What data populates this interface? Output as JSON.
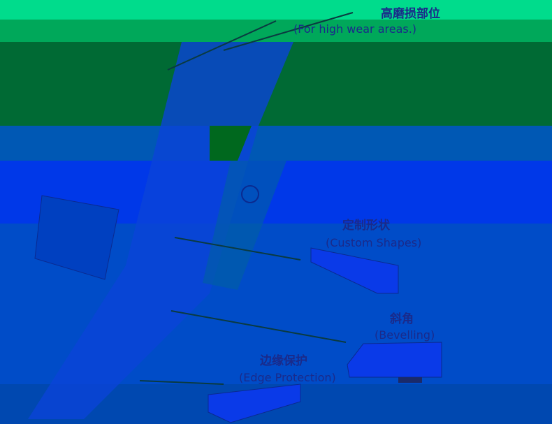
{
  "labels": [
    {
      "zh": "高磨损部位",
      "en": "(For high wear areas.)"
    },
    {
      "zh": "定制形状",
      "en": "(Custom Shapes)"
    },
    {
      "zh": "斜角",
      "en": "(Bevelling)"
    },
    {
      "zh": "边缘保护",
      "en": "(Edge Protection)"
    }
  ]
}
